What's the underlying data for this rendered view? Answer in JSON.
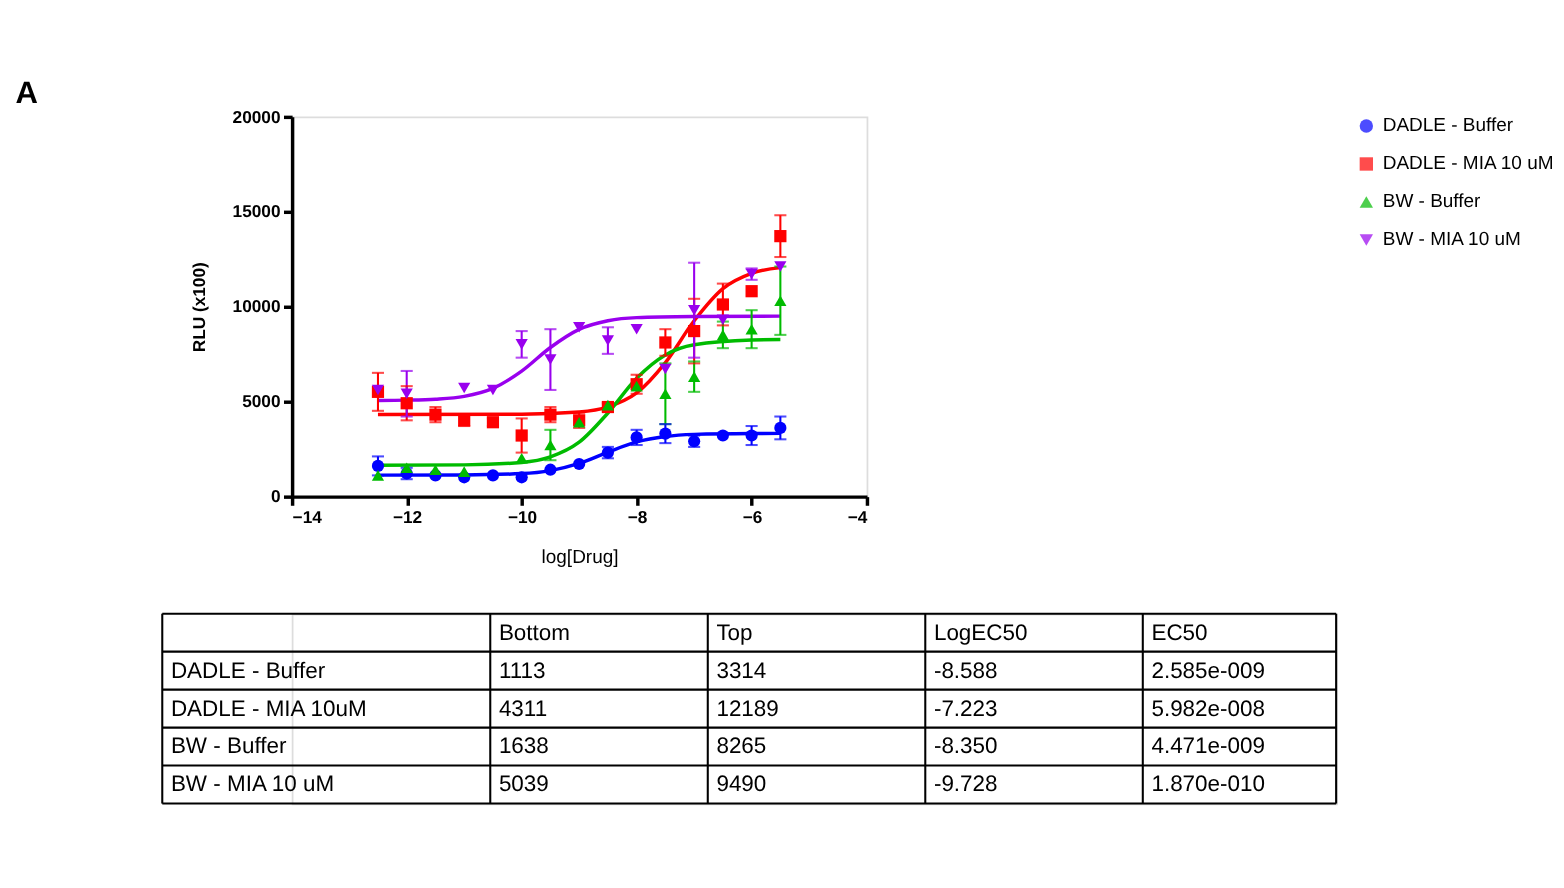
{
  "chart_data": [
    {
      "type": "scatter",
      "annotations": [
        "A"
      ],
      "xlabel": "log[Drug]",
      "ylabel": "RLU (x100)",
      "x": [
        -12.5,
        -12,
        -11.5,
        -11,
        -10.5,
        -10,
        -9.5,
        -9,
        -8.5,
        -8,
        -7.5,
        -7,
        -6.5,
        -6,
        -5.5
      ],
      "xlim": [
        -14,
        -4
      ],
      "xticks": [
        -14,
        -12,
        -10,
        -8,
        -6,
        -4
      ],
      "ylim": [
        0,
        20000
      ],
      "yticks": [
        0,
        5000,
        10000,
        15000,
        20000
      ],
      "legend": "right",
      "grid": false,
      "series": [
        {
          "name": "DADLE - Buffer",
          "color": "#0000ff",
          "marker": "circle",
          "values": [
            1600,
            1200,
            1100,
            1000,
            1100,
            1000,
            1400,
            1700,
            2300,
            3100,
            3300,
            2900,
            3200,
            3200,
            3600
          ],
          "errors": [
            500,
            300,
            null,
            null,
            null,
            null,
            null,
            null,
            300,
            400,
            500,
            300,
            null,
            500,
            600
          ]
        },
        {
          "name": "DADLE - MIA  10 uM",
          "color": "#ff0000",
          "marker": "square",
          "values": [
            5500,
            4900,
            4300,
            4000,
            3900,
            3200,
            4300,
            4000,
            4700,
            5900,
            8100,
            8700,
            10100,
            10800,
            13700
          ],
          "errors": [
            1000,
            900,
            400,
            300,
            200,
            900,
            400,
            400,
            200,
            500,
            700,
            1700,
            1100,
            null,
            1100
          ]
        },
        {
          "name": "BW - Buffer",
          "color": "#00bb00",
          "marker": "triangle",
          "values": [
            1100,
            1500,
            1400,
            1300,
            null,
            2000,
            2700,
            3900,
            4800,
            5800,
            5400,
            6300,
            8500,
            8800,
            10300
          ],
          "errors": [
            null,
            null,
            null,
            null,
            null,
            null,
            800,
            null,
            null,
            null,
            1600,
            800,
            700,
            1000,
            1800
          ]
        },
        {
          "name": "BW - MIA 10 uM",
          "color": "#9900ee",
          "marker": "triangle-down",
          "values": [
            5600,
            5400,
            null,
            5700,
            5600,
            8000,
            7200,
            8900,
            8200,
            8800,
            6700,
            9800,
            9300,
            11700,
            12100
          ],
          "errors": [
            null,
            1200,
            null,
            null,
            null,
            700,
            1600,
            null,
            700,
            null,
            null,
            2500,
            null,
            300,
            null
          ]
        },
        {
          "type": "line",
          "color": "#0000ff",
          "x": [
            -12.5,
            -11,
            -10,
            -9.5,
            -9,
            -8.5,
            -8,
            -7.5,
            -7,
            -6,
            -5.5
          ],
          "values": [
            1113,
            1122,
            1195,
            1353,
            1728,
            2324,
            2863,
            3148,
            3259,
            3308,
            3312
          ]
        },
        {
          "type": "line",
          "color": "#ff0000",
          "x": [
            -12.5,
            -10,
            -9,
            -8.5,
            -8,
            -7.5,
            -7,
            -6.5,
            -6,
            -5.5
          ],
          "values": [
            4311,
            4324,
            4441,
            4706,
            5440,
            7037,
            9241,
            10937,
            11744,
            12043
          ]
        },
        {
          "type": "line",
          "color": "#00bb00",
          "x": [
            -12.5,
            -11,
            -10,
            -9.5,
            -9,
            -8.5,
            -8,
            -7.5,
            -7,
            -6,
            -5.5
          ],
          "values": [
            1638,
            1653,
            1783,
            2078,
            2850,
            4387,
            6218,
            7446,
            7982,
            8235,
            8256
          ]
        },
        {
          "type": "line",
          "color": "#9900ee",
          "x": [
            -12.5,
            -12,
            -11.5,
            -11,
            -10.5,
            -10,
            -9.5,
            -9,
            -8.5,
            -8,
            -7,
            -5.5
          ],
          "values": [
            5047,
            5063,
            5113,
            5264,
            5682,
            6590,
            7835,
            8789,
            9241,
            9408,
            9466,
            9488
          ]
        }
      ]
    },
    {
      "type": "other",
      "categories": [
        "Bottom",
        "Top",
        "LogEC50",
        "EC50"
      ],
      "y_categories": [
        "DADLE - Buffer",
        "DADLE - MIA  10uM",
        "BW - Buffer",
        "BW - MIA 10 uM"
      ],
      "cell_labels": [
        [
          "1113",
          "3314",
          "-8.588",
          "2.585e-009"
        ],
        [
          "4311",
          "12189",
          "-7.223",
          "5.982e-008"
        ],
        [
          "1638",
          "8265",
          "-8.350",
          "4.471e-009"
        ],
        [
          "5039",
          "9490",
          "-9.728",
          "1.870e-010"
        ]
      ]
    }
  ]
}
